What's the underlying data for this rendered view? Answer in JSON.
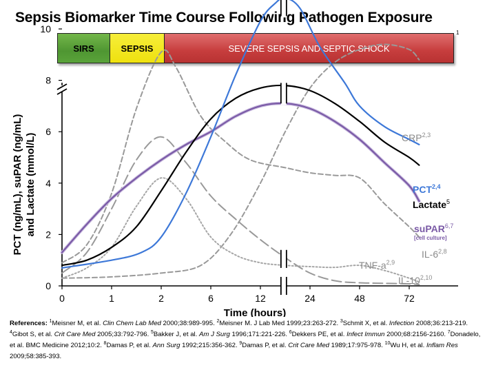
{
  "title": "Sepsis Biomarker Time Course Following Pathogen Exposure",
  "phase_bar": {
    "ref": "1",
    "phases": [
      {
        "label": "SIRS",
        "color": "#5aa33a"
      },
      {
        "label": "SEPSIS",
        "color": "#f0e21c"
      },
      {
        "label": "SEVERE SEPSIS AND SEPTIC SHOCK",
        "color": "#c94141"
      }
    ]
  },
  "chart_data": {
    "type": "line",
    "xlabel": "Time (hours)",
    "ylabel_lines": [
      "PCT (ng/mL), suPAR (ng/mL)",
      "and Lactate (mmol/L)"
    ],
    "x_tick_labels": [
      "0",
      "1",
      "2",
      "6",
      "12",
      "24",
      "48",
      "72"
    ],
    "x": [
      0,
      1,
      2,
      3,
      4,
      5,
      6,
      7
    ],
    "x_note": "x values are tick indices; axis is non-linear hours",
    "y_tick_labels": [
      "0",
      "2",
      "4",
      "6",
      "8",
      "10"
    ],
    "ylim": [
      0,
      11.8
    ],
    "axis_break": {
      "y_top": true,
      "x_between": [
        4,
        5
      ]
    },
    "grid": false,
    "series": [
      {
        "name": "PCT",
        "ref": "2,4",
        "color": "#3d78d8",
        "style": "solid",
        "points": [
          [
            0,
            0.7
          ],
          [
            1,
            1.0
          ],
          [
            1.6,
            1.3
          ],
          [
            2,
            1.9
          ],
          [
            2.5,
            3.6
          ],
          [
            3,
            5.8
          ],
          [
            3.5,
            8.2
          ],
          [
            4,
            10.3
          ],
          [
            4.3,
            11.0
          ],
          [
            4.5,
            11.2
          ],
          [
            4.8,
            10.8
          ],
          [
            5.2,
            9.3
          ],
          [
            5.7,
            7.9
          ],
          [
            6,
            7.0
          ],
          [
            6.5,
            6.2
          ],
          [
            7,
            5.7
          ],
          [
            7.2,
            5.5
          ]
        ]
      },
      {
        "name": "Lactate",
        "ref": "5",
        "color": "#000000",
        "style": "solid",
        "points": [
          [
            0,
            0.8
          ],
          [
            0.5,
            1.0
          ],
          [
            1,
            1.5
          ],
          [
            1.5,
            2.3
          ],
          [
            2,
            3.7
          ],
          [
            2.5,
            5.2
          ],
          [
            3,
            6.5
          ],
          [
            3.5,
            7.3
          ],
          [
            4,
            7.7
          ],
          [
            4.5,
            7.8
          ],
          [
            5,
            7.6
          ],
          [
            5.5,
            7.1
          ],
          [
            6,
            6.4
          ],
          [
            6.5,
            5.6
          ],
          [
            7,
            5.0
          ],
          [
            7.2,
            4.7
          ]
        ]
      },
      {
        "name": "suPAR",
        "ref": "6,7",
        "sublabel": "[cell culture]",
        "color": "#7a5aa6",
        "style": "solid",
        "points": [
          [
            0,
            1.3
          ],
          [
            0.5,
            2.4
          ],
          [
            1,
            3.4
          ],
          [
            1.5,
            4.2
          ],
          [
            2,
            4.9
          ],
          [
            2.5,
            5.5
          ],
          [
            3,
            6.0
          ],
          [
            3.5,
            6.6
          ],
          [
            4,
            7.0
          ],
          [
            4.5,
            7.1
          ],
          [
            5,
            6.9
          ],
          [
            5.5,
            6.4
          ],
          [
            6,
            5.7
          ],
          [
            6.5,
            4.8
          ],
          [
            7,
            3.9
          ],
          [
            7.2,
            3.3
          ]
        ]
      },
      {
        "name": "CRP",
        "ref": "2,3",
        "color": "#999999",
        "style": "dashed",
        "points": [
          [
            0,
            0.3
          ],
          [
            1,
            0.35
          ],
          [
            2,
            0.5
          ],
          [
            2.8,
            0.8
          ],
          [
            3.4,
            2.0
          ],
          [
            4,
            4.0
          ],
          [
            4.5,
            6.0
          ],
          [
            5,
            7.7
          ],
          [
            5.5,
            8.7
          ],
          [
            6,
            9.2
          ],
          [
            6.5,
            9.4
          ],
          [
            7,
            9.2
          ],
          [
            7.2,
            8.8
          ]
        ]
      },
      {
        "name": "IL-6",
        "ref": "2,8",
        "color": "#999999",
        "style": "dashed",
        "points": [
          [
            0,
            0.9
          ],
          [
            0.5,
            1.6
          ],
          [
            1,
            3.6
          ],
          [
            1.5,
            6.9
          ],
          [
            2,
            9.1
          ],
          [
            2.3,
            8.5
          ],
          [
            2.8,
            6.6
          ],
          [
            3.3,
            5.6
          ],
          [
            3.8,
            4.9
          ],
          [
            4.5,
            4.6
          ],
          [
            5,
            4.4
          ],
          [
            5.5,
            4.3
          ],
          [
            6,
            4.2
          ],
          [
            6.5,
            3.2
          ],
          [
            7,
            2.3
          ],
          [
            7.2,
            1.9
          ]
        ]
      },
      {
        "name": "TNF-a",
        "ref": "2,9",
        "color": "#999999",
        "style": "long-dashed",
        "points": [
          [
            0,
            0.5
          ],
          [
            0.5,
            1.3
          ],
          [
            1,
            3.0
          ],
          [
            1.5,
            4.9
          ],
          [
            2,
            5.8
          ],
          [
            2.5,
            4.8
          ],
          [
            3,
            3.5
          ],
          [
            3.5,
            2.6
          ],
          [
            4,
            1.8
          ],
          [
            4.5,
            1.1
          ],
          [
            5,
            0.5
          ],
          [
            5.5,
            0.2
          ],
          [
            6,
            0.12
          ],
          [
            6.5,
            0.1
          ],
          [
            7,
            0.08
          ],
          [
            7.2,
            0.05
          ]
        ]
      },
      {
        "name": "IL-10",
        "ref": "2,10",
        "color": "#a5a5a5",
        "style": "dotted",
        "points": [
          [
            0,
            0.3
          ],
          [
            0.5,
            0.7
          ],
          [
            1,
            1.5
          ],
          [
            1.5,
            3.1
          ],
          [
            2,
            4.2
          ],
          [
            2.5,
            3.4
          ],
          [
            3,
            1.9
          ],
          [
            3.5,
            1.2
          ],
          [
            4,
            0.9
          ],
          [
            4.5,
            0.8
          ],
          [
            5,
            0.75
          ],
          [
            5.5,
            0.72
          ],
          [
            6,
            0.8
          ],
          [
            6.5,
            0.6
          ],
          [
            7,
            0.3
          ],
          [
            7.2,
            0.15
          ]
        ]
      }
    ]
  },
  "references": {
    "label": "References:",
    "items": [
      {
        "n": "1",
        "text": "Meisner M, et al. ",
        "journal": "Clin Chem Lab Med",
        "rest": " 2000;38:989-995. "
      },
      {
        "n": "2",
        "text": "Meisner M. J Lab Med 1999;23:263-272. ",
        "journal": "",
        "rest": ""
      },
      {
        "n": "3",
        "text": "Schmit X, et al. ",
        "journal": "Infection",
        "rest": " 2008;36:213-219. "
      },
      {
        "n": "4",
        "text": "Gibot S, et al. ",
        "journal": "Crit Care Med",
        "rest": " 2005;33:792-796. "
      },
      {
        "n": "5",
        "text": "Bakker J, et al. ",
        "journal": "Am J Surg",
        "rest": " 1996;171:221-226. "
      },
      {
        "n": "6",
        "text": "Dekkers PE, et al. ",
        "journal": "Infect Immun",
        "rest": " 2000;68:2156-2160. "
      },
      {
        "n": "7",
        "text": "Donadelo, et al. BMC Medicine 2012;10:2. ",
        "journal": "",
        "rest": ""
      },
      {
        "n": "8",
        "text": "Damas P, et al. ",
        "journal": "Ann Surg",
        "rest": " 1992;215:356-362. "
      },
      {
        "n": "9",
        "text": "Damas P, et al. ",
        "journal": "Crit Care Med",
        "rest": " 1989;17:975-978. "
      },
      {
        "n": "10",
        "text": "Wu H, et al. ",
        "journal": "Inflam Res",
        "rest": " 2009;58:385-393."
      }
    ]
  }
}
